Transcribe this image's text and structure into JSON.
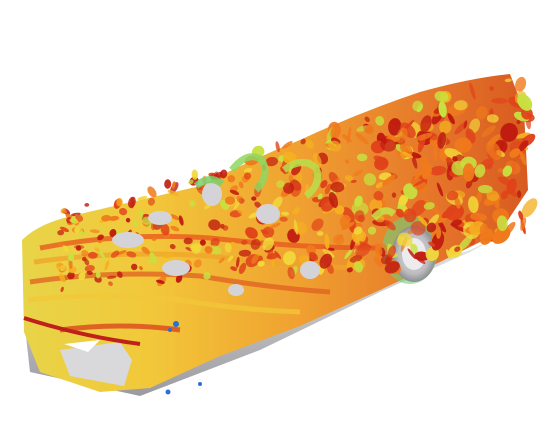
{
  "image": {
    "subject": "car-body-flow-visualization",
    "background_color": "#ffffff",
    "colormap": [
      "#c01a10",
      "#e0421a",
      "#f07a1c",
      "#f5b020",
      "#f2d83a",
      "#c8e040",
      "#6fd07a",
      "#2aa8d8",
      "#1a40c8"
    ],
    "body_gray": "#c9c9cc",
    "body_dark": "#8e8e92"
  }
}
